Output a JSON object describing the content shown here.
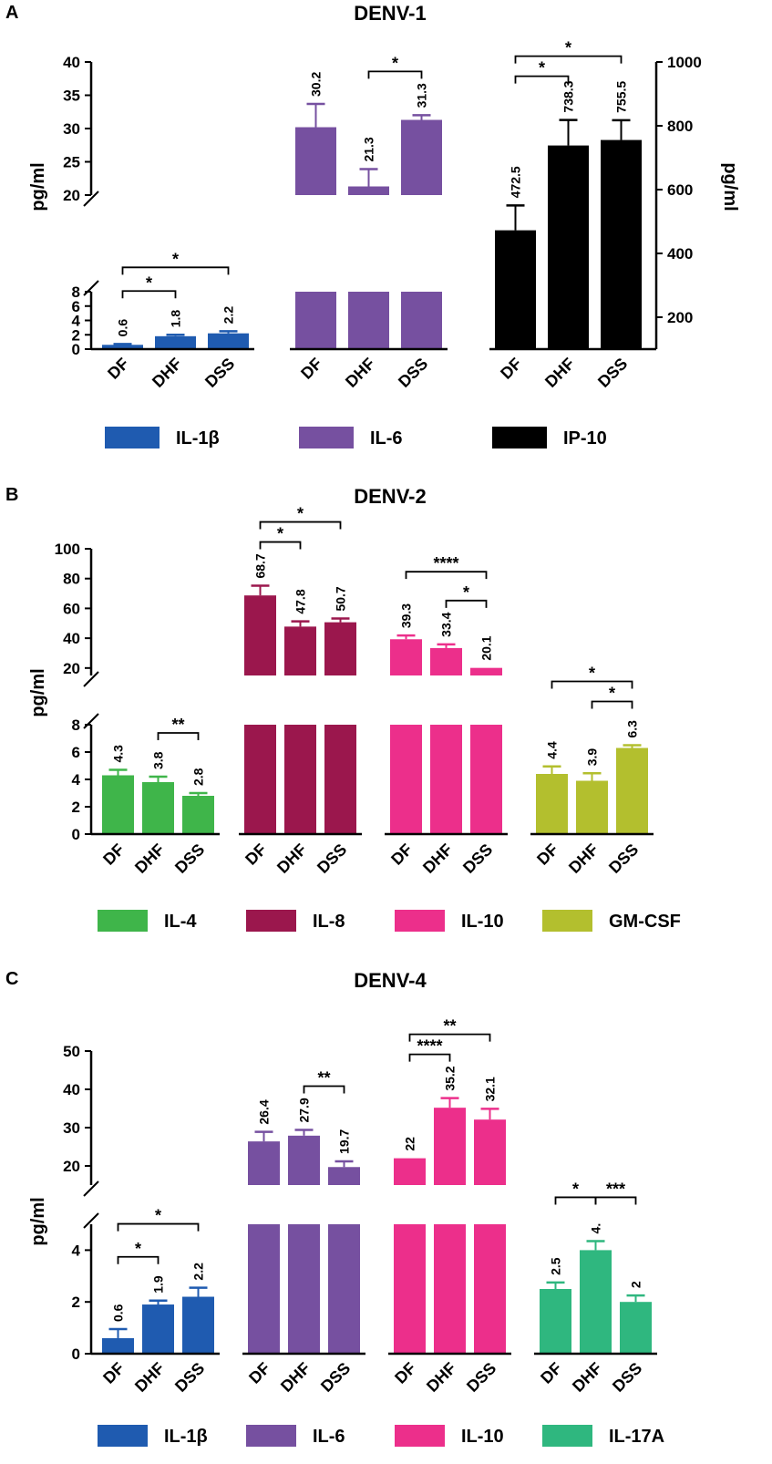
{
  "chart_data": [
    {
      "panel": "A",
      "type": "bar",
      "title": "DENV-1",
      "ylabel_left": "pg/ml",
      "ylabel_right": "pg/ml",
      "ylim_left_lower": [
        0,
        8
      ],
      "ylim_left_upper": [
        20,
        40
      ],
      "yticks_left_lower": [
        "0",
        "2",
        "4",
        "6",
        "8"
      ],
      "yticks_left_upper": [
        "20",
        "25",
        "30",
        "35",
        "40"
      ],
      "ylim_right": [
        100,
        1000
      ],
      "yticks_right": [
        "200",
        "400",
        "600",
        "800",
        "1000"
      ],
      "categories": [
        "DF",
        "DHF",
        "DSS"
      ],
      "series": [
        {
          "name": "IL-1β",
          "color": "#1f5bb0",
          "axis": "left",
          "values": [
            0.6,
            1.8,
            2.2
          ],
          "errors": [
            0.12,
            0.2,
            0.3
          ],
          "labels": [
            "0.6",
            "1.8",
            "2.2"
          ]
        },
        {
          "name": "IL-6",
          "color": "#7650a0",
          "axis": "left",
          "values": [
            30.2,
            21.3,
            31.3
          ],
          "errors": [
            3.5,
            2.6,
            0.7
          ],
          "labels": [
            "30.2",
            "21.3",
            "31.3"
          ]
        },
        {
          "name": "IP-10",
          "color": "#000000",
          "axis": "right",
          "values": [
            472.5,
            738.3,
            755.5
          ],
          "errors": [
            78,
            80,
            62
          ],
          "labels": [
            "472.5",
            "738.3",
            "755.5"
          ]
        }
      ],
      "significance": [
        {
          "series": 0,
          "from": 0,
          "to": 1,
          "label": "*"
        },
        {
          "series": 0,
          "from": 0,
          "to": 2,
          "label": "*"
        },
        {
          "series": 1,
          "from": 1,
          "to": 2,
          "label": "*"
        },
        {
          "series": 2,
          "from": 0,
          "to": 1,
          "label": "*"
        },
        {
          "series": 2,
          "from": 0,
          "to": 2,
          "label": "*"
        }
      ]
    },
    {
      "panel": "B",
      "type": "bar",
      "title": "DENV-2",
      "ylabel_left": "pg/ml",
      "ylim_left_lower": [
        0,
        8
      ],
      "ylim_left_upper": [
        15,
        100
      ],
      "yticks_left_lower": [
        "0",
        "2",
        "4",
        "6",
        "8"
      ],
      "yticks_left_upper": [
        "20",
        "40",
        "60",
        "80",
        "100"
      ],
      "categories": [
        "DF",
        "DHF",
        "DSS"
      ],
      "series": [
        {
          "name": "IL-4",
          "color": "#3fb54a",
          "axis": "left",
          "values": [
            4.3,
            3.8,
            2.8
          ],
          "errors": [
            0.4,
            0.4,
            0.2
          ],
          "labels": [
            "4.3",
            "3.8",
            "2.8"
          ]
        },
        {
          "name": "IL-8",
          "color": "#9b174d",
          "axis": "left",
          "values": [
            68.7,
            47.8,
            50.7
          ],
          "errors": [
            6.5,
            3.5,
            2.5
          ],
          "labels": [
            "68.7",
            "47.8",
            "50.7"
          ]
        },
        {
          "name": "IL-10",
          "color": "#ec2f8b",
          "axis": "left",
          "values": [
            39.3,
            33.4,
            20.1
          ],
          "errors": [
            2.5,
            2.5,
            0.0
          ],
          "labels": [
            "39.3",
            "33.4",
            "20.1"
          ]
        },
        {
          "name": "GM-CSF",
          "color": "#b3bf2e",
          "axis": "left",
          "values": [
            4.4,
            3.9,
            6.3
          ],
          "errors": [
            0.55,
            0.55,
            0.2
          ],
          "labels": [
            "4.4",
            "3.9",
            "6.3"
          ]
        }
      ],
      "significance": [
        {
          "series": 0,
          "from": 1,
          "to": 2,
          "label": "**"
        },
        {
          "series": 1,
          "from": 0,
          "to": 1,
          "label": "*"
        },
        {
          "series": 1,
          "from": 0,
          "to": 2,
          "label": "*"
        },
        {
          "series": 2,
          "from": 0,
          "to": 2,
          "label": "****"
        },
        {
          "series": 2,
          "from": 1,
          "to": 2,
          "label": "*"
        },
        {
          "series": 3,
          "from": 0,
          "to": 2,
          "label": "*"
        },
        {
          "series": 3,
          "from": 1,
          "to": 2,
          "label": "*"
        }
      ]
    },
    {
      "panel": "C",
      "type": "bar",
      "title": "DENV-4",
      "ylabel_left": "pg/ml",
      "ylim_left_lower": [
        0,
        5
      ],
      "ylim_left_upper": [
        15,
        50
      ],
      "yticks_left_lower": [
        "0",
        "2",
        "4"
      ],
      "yticks_left_upper": [
        "20",
        "30",
        "40",
        "50"
      ],
      "categories": [
        "DF",
        "DHF",
        "DSS"
      ],
      "series": [
        {
          "name": "IL-1β",
          "color": "#1f5bb0",
          "axis": "left",
          "values": [
            0.6,
            1.9,
            2.2
          ],
          "errors": [
            0.35,
            0.15,
            0.35
          ],
          "labels": [
            "0.6",
            "1.9",
            "2.2"
          ]
        },
        {
          "name": "IL-6",
          "color": "#7650a0",
          "axis": "left",
          "values": [
            26.4,
            27.9,
            19.7
          ],
          "errors": [
            2.5,
            1.5,
            1.5
          ],
          "labels": [
            "26.4",
            "27.9",
            "19.7"
          ]
        },
        {
          "name": "IL-10",
          "color": "#ec2f8b",
          "axis": "left",
          "values": [
            22,
            35.2,
            32.1
          ],
          "errors": [
            0.0,
            2.5,
            2.8
          ],
          "labels": [
            "22",
            "35.2",
            "32.1"
          ]
        },
        {
          "name": "IL-17A",
          "color": "#2fb77f",
          "axis": "left",
          "values": [
            2.5,
            4.0,
            2.0
          ],
          "errors": [
            0.25,
            0.35,
            0.25
          ],
          "labels": [
            "2.5",
            "4.",
            "2"
          ]
        }
      ],
      "significance": [
        {
          "series": 0,
          "from": 0,
          "to": 1,
          "label": "*"
        },
        {
          "series": 0,
          "from": 0,
          "to": 2,
          "label": "*"
        },
        {
          "series": 1,
          "from": 1,
          "to": 2,
          "label": "**"
        },
        {
          "series": 2,
          "from": 0,
          "to": 1,
          "label": "****"
        },
        {
          "series": 2,
          "from": 0,
          "to": 2,
          "label": "**"
        },
        {
          "series": 3,
          "from": 0,
          "to": 1,
          "label": "*"
        },
        {
          "series": 3,
          "from": 1,
          "to": 2,
          "label": "***"
        }
      ]
    }
  ]
}
